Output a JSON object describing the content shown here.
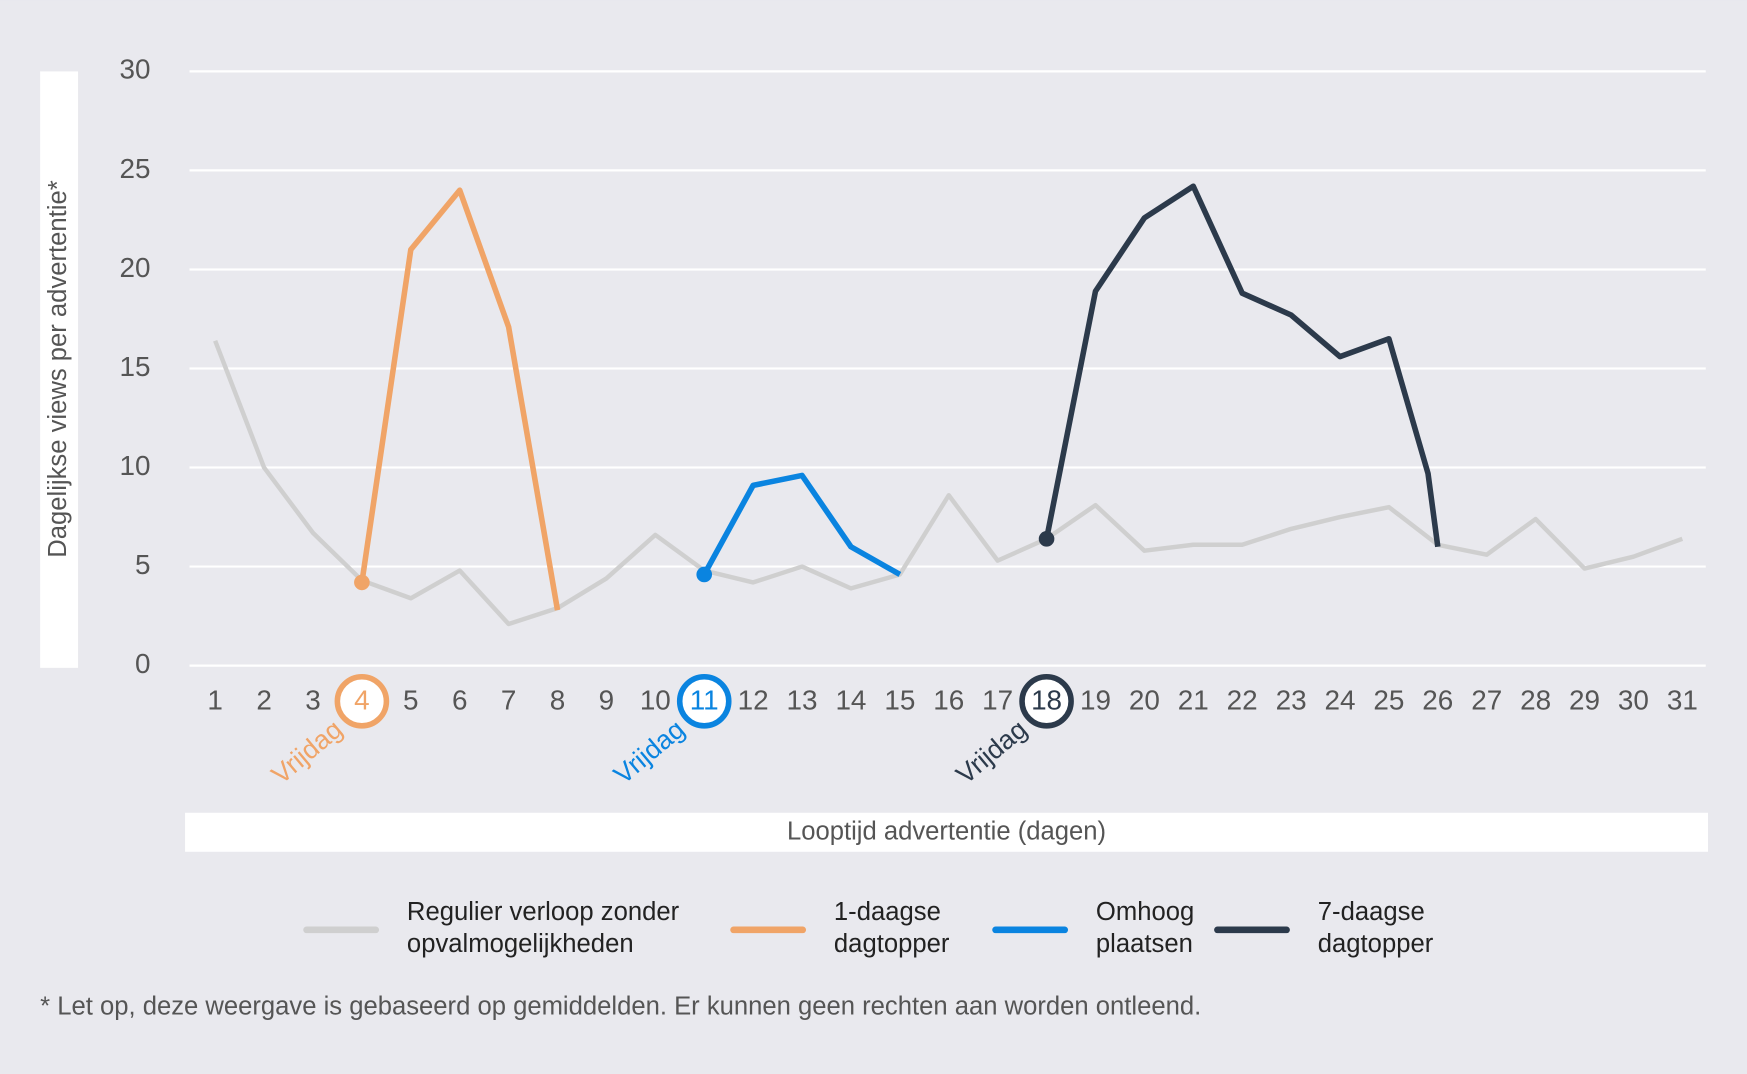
{
  "chart_data": {
    "type": "line",
    "y_label": "Dagelijkse views per advertentie*",
    "x_label": "Looptijd advertentie (dagen)",
    "xlim": [
      1,
      31
    ],
    "xticks": [
      1,
      2,
      3,
      4,
      5,
      6,
      7,
      8,
      9,
      10,
      11,
      12,
      13,
      14,
      15,
      16,
      17,
      18,
      19,
      20,
      21,
      22,
      23,
      24,
      25,
      26,
      27,
      28,
      29,
      30,
      31
    ],
    "ylim": [
      0,
      30
    ],
    "yticks": [
      0,
      5,
      10,
      15,
      20,
      25,
      30
    ],
    "grid": true,
    "series": [
      {
        "name": "Regulier verloop zonder opvalmogelijkheden",
        "color": "#cfcfcf",
        "x": [
          1,
          2,
          3,
          4,
          5,
          6,
          7,
          8,
          9,
          10,
          11,
          12,
          13,
          14,
          15,
          16,
          17,
          18,
          19,
          20,
          21,
          22,
          23,
          24,
          25,
          26,
          27,
          28,
          29,
          30,
          31
        ],
        "values": [
          16.4,
          10.0,
          6.7,
          4.3,
          3.4,
          4.8,
          2.1,
          2.9,
          4.4,
          6.6,
          4.8,
          4.2,
          5.0,
          3.9,
          4.6,
          8.6,
          5.3,
          6.4,
          8.1,
          5.8,
          6.1,
          6.1,
          6.9,
          7.5,
          8.0,
          6.1,
          5.6,
          7.4,
          4.9,
          5.5,
          6.4
        ]
      },
      {
        "name": "1-daagse dagtopper",
        "color": "#f0a467",
        "x": [
          4,
          5,
          6,
          7,
          8
        ],
        "values": [
          4.2,
          21.0,
          24.0,
          17.1,
          2.8
        ]
      },
      {
        "name": "Omhoog plaatsen",
        "color": "#0a84e0",
        "x": [
          11,
          12,
          13,
          14,
          15
        ],
        "values": [
          4.6,
          9.1,
          9.6,
          6.0,
          4.6
        ]
      },
      {
        "name": "7-daagse dagtopper",
        "color": "#2c3a4b",
        "x": [
          18,
          19,
          20,
          21,
          22,
          23,
          24,
          25,
          25.8,
          26
        ],
        "values": [
          6.4,
          18.9,
          22.6,
          24.2,
          18.8,
          17.7,
          15.6,
          16.5,
          9.7,
          6.0
        ]
      }
    ],
    "highlights": [
      {
        "day": 4,
        "label": "Vrijdag",
        "color": "#f0a467"
      },
      {
        "day": 11,
        "label": "Vrijdag",
        "color": "#0a84e0"
      },
      {
        "day": 18,
        "label": "Vrijdag",
        "color": "#2c3a4b"
      }
    ],
    "footnote": "* Let op, deze weergave is gebaseerd op gemiddelden. Er kunnen geen rechten aan worden ontleend."
  }
}
